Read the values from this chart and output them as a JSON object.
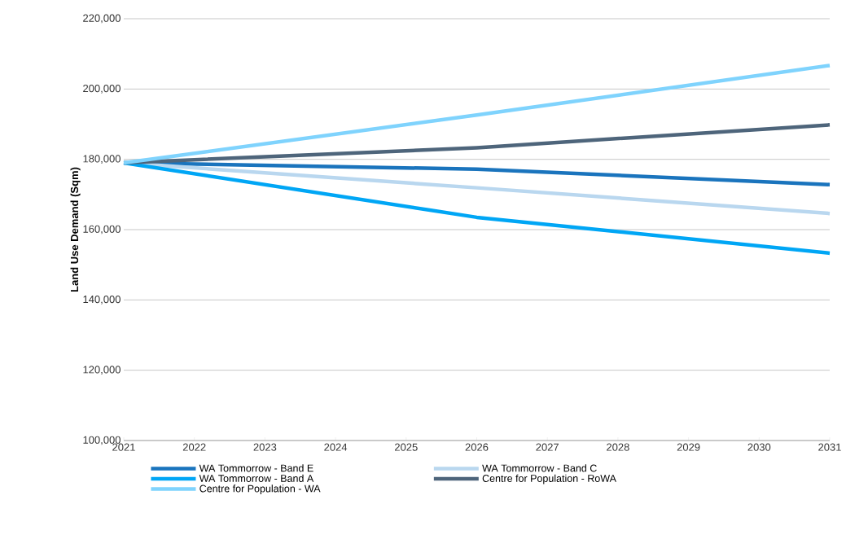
{
  "chart_data": {
    "type": "line",
    "ylabel": "Land Use Demand (Sqm)",
    "x": [
      2021,
      2026,
      2031
    ],
    "xlim": [
      2021,
      2031
    ],
    "xticks": [
      2021,
      2022,
      2023,
      2024,
      2025,
      2026,
      2027,
      2028,
      2029,
      2030,
      2031
    ],
    "ylim": [
      100000,
      220000
    ],
    "yticks": [
      {
        "value": 100000,
        "label": "100,000"
      },
      {
        "value": 120000,
        "label": "120,000"
      },
      {
        "value": 140000,
        "label": "140,000"
      },
      {
        "value": 160000,
        "label": "160,000"
      },
      {
        "value": 180000,
        "label": "180,000"
      },
      {
        "value": 200000,
        "label": "200,000"
      },
      {
        "value": 220000,
        "label": "220,000"
      }
    ],
    "grid": "y",
    "legend": "bottom",
    "marker": "none",
    "line_style": "solid",
    "series": [
      {
        "name": "WA Tommorrow - Band E",
        "color": "#1a74bd",
        "values": [
          179000,
          177200,
          172800
        ]
      },
      {
        "name": "WA Tommorrow - Band C",
        "color": "#b9d7ef",
        "values": [
          179000,
          171900,
          164600
        ]
      },
      {
        "name": "WA Tommorrow - Band A",
        "color": "#00a6f5",
        "values": [
          179000,
          163500,
          153300
        ]
      },
      {
        "name": "Centre for Population - RoWA",
        "color": "#4e657b",
        "values": [
          179000,
          183300,
          189800
        ]
      },
      {
        "name": "Centre for Population - WA",
        "color": "#7fd3fd",
        "values": [
          179000,
          192600,
          206700
        ]
      }
    ]
  }
}
